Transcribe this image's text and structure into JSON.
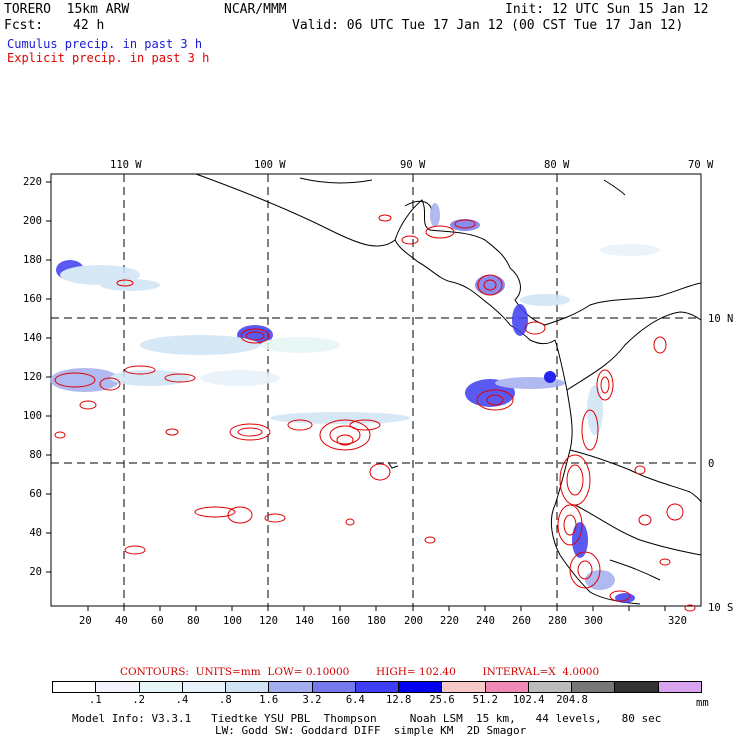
{
  "header": {
    "model": "TORERO  15km ARW",
    "org": "NCAR/MMM",
    "init": "Init: 12 UTC Sun 15 Jan 12",
    "fcst_label": "Fcst:",
    "fcst_value": "42 h",
    "valid": "Valid: 06 UTC Tue 17 Jan 12 (00 CST Tue 17 Jan 12)",
    "field1": "Cumulus precip. in past 3 h",
    "field2": "Explicit precip. in past 3 h"
  },
  "map": {
    "lon_labels": [
      "110 W",
      "100 W",
      "90 W",
      "80 W",
      "70 W"
    ],
    "lat_labels": [
      "10 N",
      "0",
      "10 S"
    ],
    "y_ticks": [
      "220",
      "200",
      "180",
      "160",
      "140",
      "120",
      "100",
      "80",
      "60",
      "40",
      "20"
    ],
    "x_ticks": [
      "20",
      "40",
      "60",
      "80",
      "100",
      "120",
      "140",
      "160",
      "180",
      "200",
      "220",
      "240",
      "260",
      "280",
      "300",
      "320"
    ]
  },
  "contour_info": {
    "label": "CONTOURS:",
    "units": "UNITS=mm",
    "low": "LOW= 0.10000",
    "high": "HIGH= 102.40",
    "interval": "INTERVAL=X  4.0000"
  },
  "colorbar": {
    "colors": [
      "#ffffff",
      "#f3f3fb",
      "#e6f5f5",
      "#e8f2fa",
      "#cfe3f4",
      "#a3aeef",
      "#7579ec",
      "#3e3ef2",
      "#0000ee",
      "#f6c8c8",
      "#f089b6",
      "#bbbbbb",
      "#777777",
      "#333333",
      "#d8a4f0"
    ],
    "labels": [
      ".1",
      ".2",
      ".4",
      ".8",
      "1.6",
      "3.2",
      "6.4",
      "12.8",
      "25.6",
      "51.2",
      "102.4",
      "204.8"
    ],
    "units": "mm"
  },
  "footer": {
    "line1": "Model Info: V3.3.1   Tiedtke YSU PBL  Thompson     Noah LSM  15 km,   44 levels,   80 sec",
    "line2": "LW: Godd SW: Goddard DIFF  simple KM  2D Smagor"
  }
}
